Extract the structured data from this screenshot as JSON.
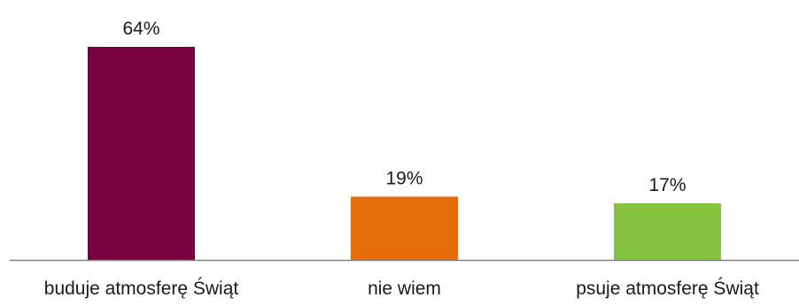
{
  "chart_data": {
    "type": "bar",
    "categories": [
      "buduje atmosferę Świąt",
      "nie wiem",
      "psuje atmosferę Świąt"
    ],
    "values": [
      64,
      19,
      17
    ],
    "value_labels": [
      "64%",
      "19%",
      "17%"
    ],
    "unit": "%",
    "title": "",
    "xlabel": "",
    "ylabel": "",
    "ylim": [
      0,
      64
    ],
    "grid": false,
    "legend": "none",
    "colors": [
      "#7a0040",
      "#e46c0a",
      "#86c440"
    ],
    "axis_color": "#808080"
  }
}
